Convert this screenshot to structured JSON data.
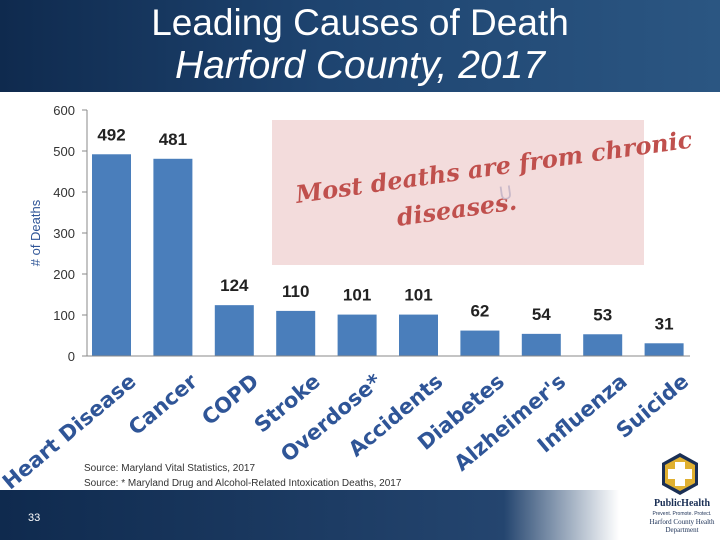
{
  "slide": {
    "title_line1": "Leading Causes of Death",
    "title_line2": "Harford County, 2017",
    "slide_number": "33",
    "callout_line1": "Most deaths are from chronic",
    "callout_line2": "diseases.",
    "callout_stray": "U",
    "sources": [
      "Source: Maryland Vital Statistics, 2017",
      "Source: * Maryland Drug and Alcohol-Related Intoxication Deaths, 2017"
    ],
    "logo": {
      "name": "PublicHealth",
      "tagline": "Prevent. Promote. Protect.",
      "org": "Harford County Health Department"
    }
  },
  "colors": {
    "header_bg": "#1e4470",
    "bar": "#4a7ebb",
    "callout_bg": "#f3dcdc",
    "callout_text": "#c0504d",
    "category_text": "#2f5597"
  },
  "chart_data": {
    "type": "bar",
    "title": "Leading Causes of Death Harford County, 2017",
    "xlabel": "",
    "ylabel": "# of Deaths",
    "ylim": [
      0,
      600
    ],
    "yticks": [
      0,
      100,
      200,
      300,
      400,
      500,
      600
    ],
    "categories": [
      "Heart Disease",
      "Cancer",
      "COPD",
      "Stroke",
      "Overdose*",
      "Accidents",
      "Diabetes",
      "Alzheimer's",
      "Influenza",
      "Suicide"
    ],
    "values": [
      492,
      481,
      124,
      110,
      101,
      101,
      62,
      54,
      53,
      31
    ],
    "grid": false,
    "legend": "none"
  }
}
